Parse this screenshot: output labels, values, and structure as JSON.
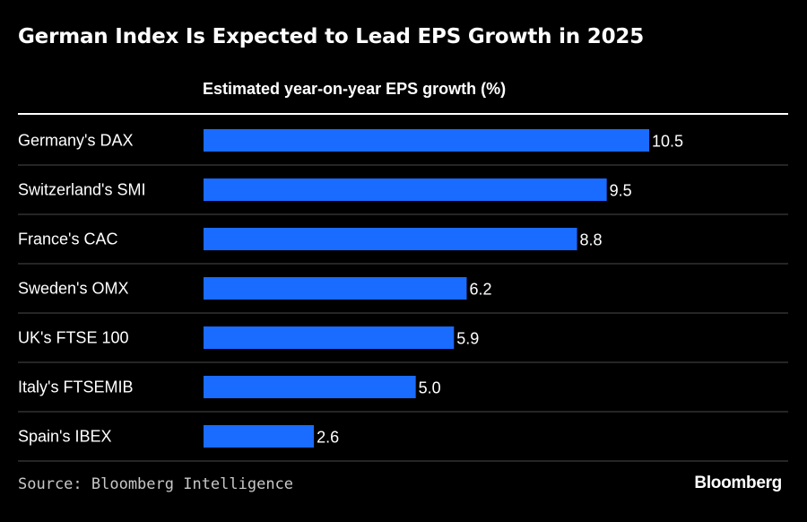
{
  "title": "German Index Is Expected to Lead EPS Growth in 2025",
  "subtitle": "Estimated year-on-year EPS growth (%)",
  "source": "Source: Bloomberg Intelligence",
  "brand": "Bloomberg",
  "colors": {
    "background": "#000000",
    "bar": "#1a6bff",
    "text": "#ffffff",
    "divider": "#4a4a4a"
  },
  "chart_data": {
    "type": "bar",
    "orientation": "horizontal",
    "categories": [
      "Germany's DAX",
      "Switzerland's SMI",
      "France's CAC",
      "Sweden's OMX",
      "UK's FTSE 100",
      "Italy's FTSEMIB",
      "Spain's IBEX"
    ],
    "values": [
      10.5,
      9.5,
      8.8,
      6.2,
      5.9,
      5.0,
      2.6
    ],
    "value_labels": [
      "10.5",
      "9.5",
      "8.8",
      "6.2",
      "5.9",
      "5.0",
      "2.6"
    ],
    "title": "German Index Is Expected to Lead EPS Growth in 2025",
    "xlabel": "Estimated year-on-year EPS growth (%)",
    "ylabel": "",
    "xlim": [
      0,
      10.5
    ],
    "grid": false,
    "legend": "none"
  }
}
